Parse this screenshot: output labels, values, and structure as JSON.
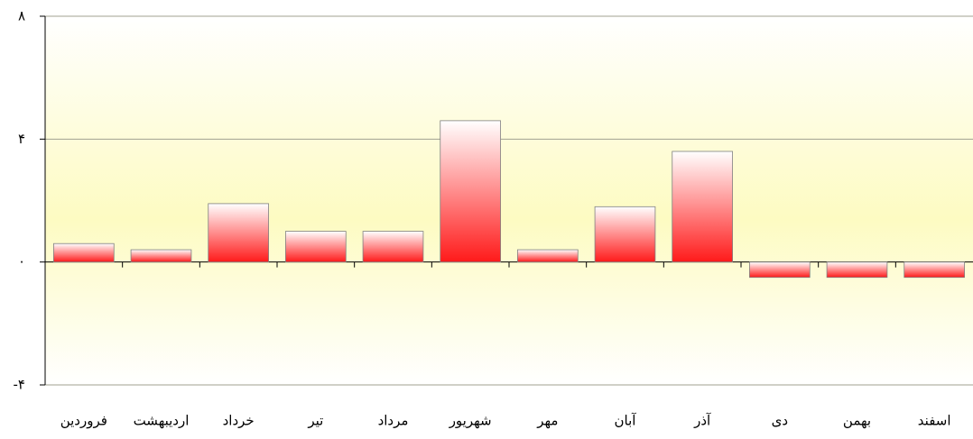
{
  "chart_data": {
    "type": "bar",
    "categories": [
      "فروردین",
      "اردیبهشت",
      "خرداد",
      "تیر",
      "مرداد",
      "شهریور",
      "مهر",
      "آبان",
      "آذر",
      "دی",
      "بهمن",
      "اسفند"
    ],
    "values": [
      0.6,
      0.4,
      1.9,
      1.0,
      1.0,
      4.6,
      0.4,
      1.8,
      3.6,
      -0.5,
      -0.5,
      -0.5
    ],
    "color": "#ff1a1a",
    "ylim": [
      -4,
      8
    ],
    "yticks": [
      {
        "value": -4,
        "label": "-۴"
      },
      {
        "value": 0,
        "label": "۰"
      },
      {
        "value": 4,
        "label": "۴"
      },
      {
        "value": 8,
        "label": "۸"
      }
    ],
    "grid": true
  }
}
